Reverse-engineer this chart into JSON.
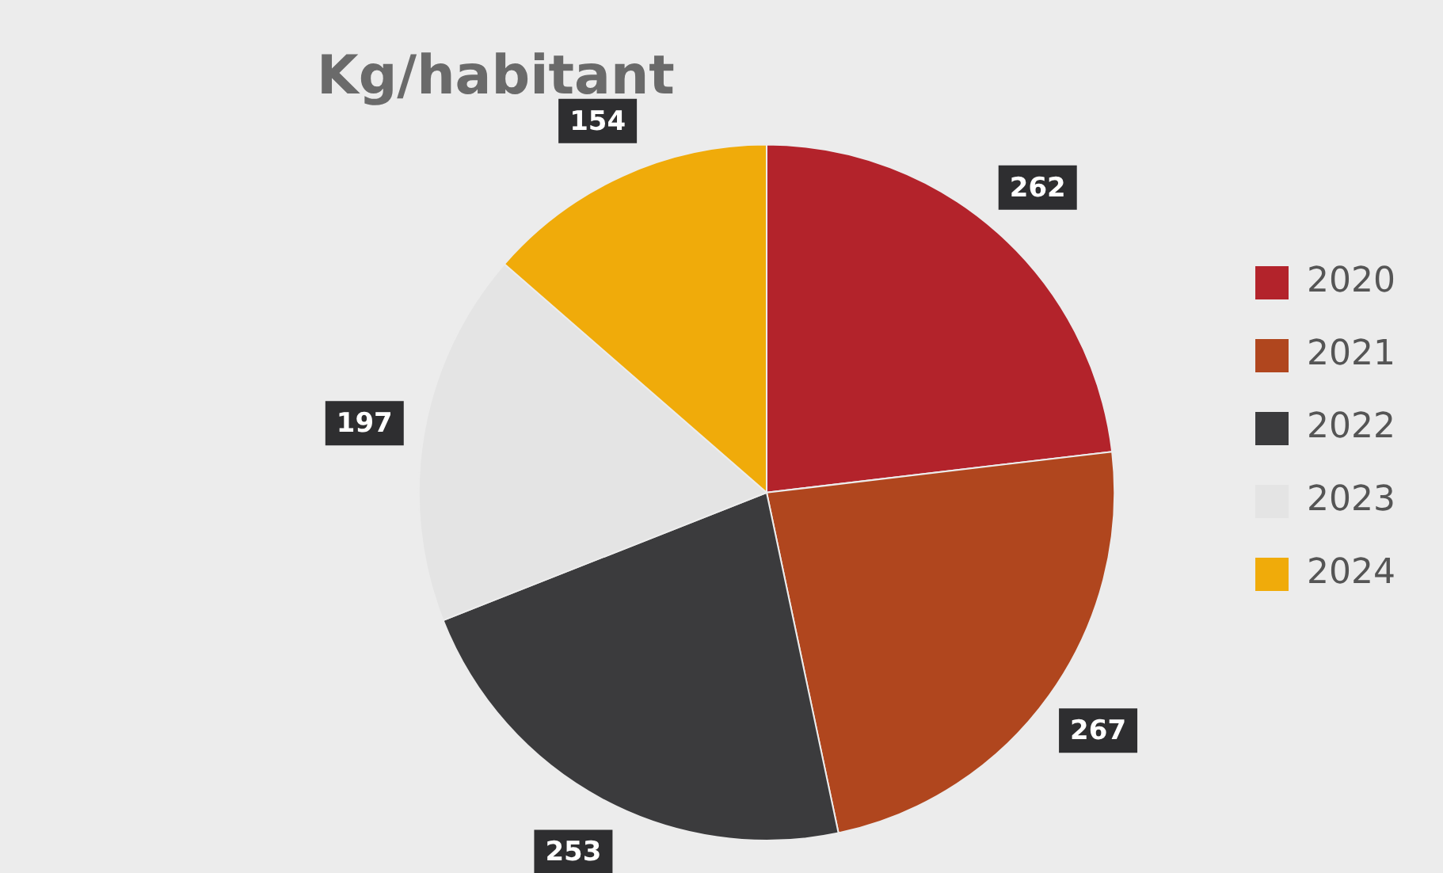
{
  "chart_data": {
    "type": "pie",
    "title": "Kg/habitant",
    "categories": [
      "2020",
      "2021",
      "2022",
      "2023",
      "2024"
    ],
    "values": [
      262,
      267,
      253,
      197,
      154
    ],
    "colors": [
      "#b3232b",
      "#b0461e",
      "#3b3b3d",
      "#e4e4e4",
      "#f0ab0a"
    ],
    "data_labels": true,
    "legend": "right"
  }
}
